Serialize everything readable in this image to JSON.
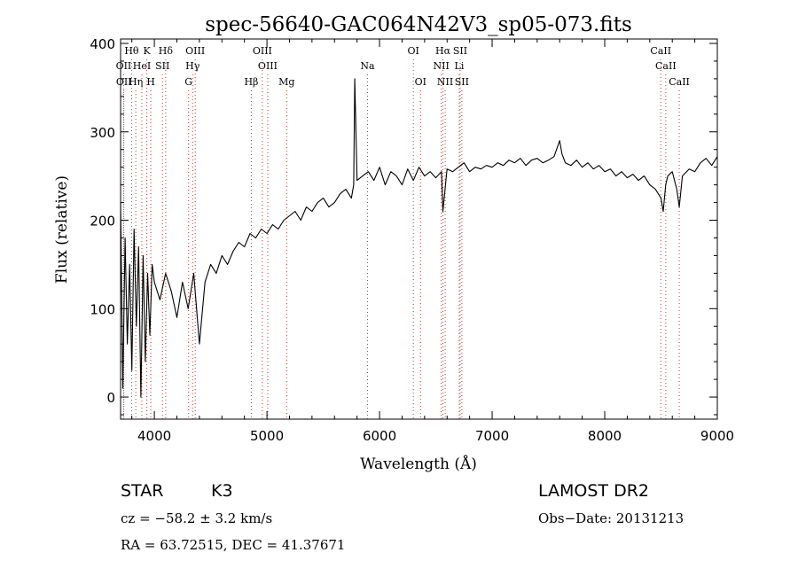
{
  "chart_data": {
    "type": "line",
    "title": "spec-56640-GAC064N42V3_sp05-073.fits",
    "xlabel": "Wavelength (Å)",
    "ylabel": "Flux (relative)",
    "xlim": [
      3700,
      9000
    ],
    "ylim": [
      -25,
      405
    ],
    "x_ticks": [
      4000,
      5000,
      6000,
      7000,
      8000,
      9000
    ],
    "y_ticks": [
      0,
      100,
      200,
      300,
      400
    ],
    "grid": false,
    "legend": "none",
    "series": [
      {
        "color": "#000000",
        "x": [
          3700,
          3720,
          3740,
          3760,
          3780,
          3800,
          3820,
          3840,
          3860,
          3880,
          3900,
          3920,
          3940,
          3960,
          3980,
          4000,
          4050,
          4100,
          4150,
          4200,
          4250,
          4300,
          4350,
          4400,
          4450,
          4500,
          4550,
          4600,
          4650,
          4700,
          4750,
          4800,
          4850,
          4900,
          4950,
          5000,
          5050,
          5100,
          5150,
          5200,
          5250,
          5300,
          5350,
          5400,
          5450,
          5500,
          5550,
          5600,
          5650,
          5700,
          5750,
          5770,
          5780,
          5800,
          5850,
          5900,
          5950,
          6000,
          6050,
          6100,
          6150,
          6200,
          6250,
          6300,
          6350,
          6400,
          6450,
          6500,
          6550,
          6563,
          6600,
          6650,
          6700,
          6750,
          6800,
          6850,
          6900,
          6950,
          7000,
          7050,
          7100,
          7150,
          7200,
          7250,
          7300,
          7350,
          7400,
          7450,
          7500,
          7550,
          7600,
          7620,
          7650,
          7700,
          7750,
          7800,
          7850,
          7900,
          7950,
          8000,
          8050,
          8100,
          8150,
          8200,
          8250,
          8300,
          8350,
          8400,
          8450,
          8500,
          8520,
          8542,
          8560,
          8600,
          8640,
          8662,
          8690,
          8750,
          8800,
          8850,
          8900,
          8950,
          9000
        ],
        "y": [
          220,
          10,
          180,
          60,
          150,
          30,
          190,
          80,
          170,
          0,
          160,
          40,
          140,
          70,
          150,
          130,
          110,
          140,
          120,
          90,
          130,
          100,
          140,
          60,
          130,
          150,
          140,
          160,
          150,
          165,
          175,
          170,
          185,
          180,
          190,
          185,
          195,
          190,
          200,
          205,
          210,
          200,
          215,
          210,
          220,
          225,
          215,
          220,
          230,
          235,
          225,
          240,
          360,
          245,
          250,
          255,
          245,
          260,
          240,
          255,
          250,
          240,
          258,
          245,
          260,
          250,
          255,
          248,
          255,
          210,
          258,
          255,
          260,
          265,
          255,
          260,
          258,
          262,
          260,
          265,
          262,
          268,
          265,
          270,
          262,
          268,
          270,
          265,
          268,
          272,
          290,
          275,
          265,
          262,
          268,
          260,
          265,
          258,
          262,
          255,
          258,
          250,
          255,
          248,
          252,
          245,
          250,
          240,
          235,
          225,
          210,
          240,
          250,
          255,
          235,
          215,
          250,
          258,
          255,
          265,
          270,
          262,
          272
        ]
      }
    ],
    "annotations": [
      {
        "label": "Hθ",
        "x": 3798,
        "row": 1
      },
      {
        "label": "K",
        "x": 3933,
        "row": 1
      },
      {
        "label": "Hδ",
        "x": 4101,
        "row": 1
      },
      {
        "label": "OIII",
        "x": 4363,
        "row": 1
      },
      {
        "label": "OIII",
        "x": 4959,
        "row": 1
      },
      {
        "label": "OI",
        "x": 6300,
        "row": 1
      },
      {
        "label": "Hα",
        "x": 6563,
        "row": 1
      },
      {
        "label": "SII",
        "x": 6716,
        "row": 1
      },
      {
        "label": "CaII",
        "x": 8498,
        "row": 1
      },
      {
        "label": "OII",
        "x": 3727,
        "row": 2
      },
      {
        "label": "HeI",
        "x": 3889,
        "row": 2
      },
      {
        "label": "SII",
        "x": 4072,
        "row": 2
      },
      {
        "label": "Hγ",
        "x": 4340,
        "row": 2
      },
      {
        "label": "OIII",
        "x": 5007,
        "row": 2
      },
      {
        "label": "Na",
        "x": 5893,
        "row": 2
      },
      {
        "label": "NII",
        "x": 6548,
        "row": 2
      },
      {
        "label": "Li",
        "x": 6708,
        "row": 2
      },
      {
        "label": "CaII",
        "x": 8542,
        "row": 2
      },
      {
        "label": "OII",
        "x": 3729,
        "row": 3
      },
      {
        "label": "Hη",
        "x": 3835,
        "row": 3
      },
      {
        "label": "H",
        "x": 3968,
        "row": 3
      },
      {
        "label": "G",
        "x": 4304,
        "row": 3
      },
      {
        "label": "Hβ",
        "x": 4861,
        "row": 3
      },
      {
        "label": "Mg",
        "x": 5175,
        "row": 3
      },
      {
        "label": "OI",
        "x": 6364,
        "row": 3
      },
      {
        "label": "NII",
        "x": 6583,
        "row": 3
      },
      {
        "label": "SII",
        "x": 6731,
        "row": 3
      },
      {
        "label": "CaII",
        "x": 8662,
        "row": 3
      }
    ]
  },
  "info": {
    "object_class": "STAR",
    "subclass": "K3",
    "survey": "LAMOST DR2",
    "cz": "cz = −58.2 ± 3.2 km/s",
    "obs_date": "Obs−Date: 20131213",
    "coords": "RA =  63.72515, DEC =  41.37671"
  }
}
